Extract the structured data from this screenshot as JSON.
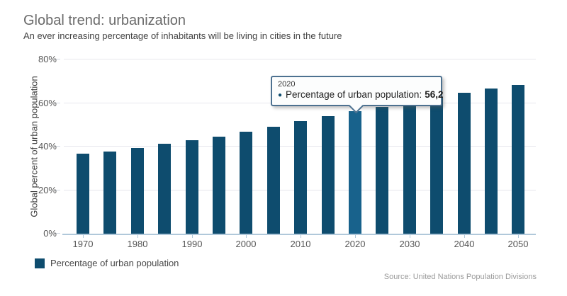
{
  "header": {
    "title": "Global trend: urbanization",
    "subtitle": "An ever increasing percentage of inhabitants will be living in cities in the future"
  },
  "chart_data": {
    "type": "bar",
    "title": "Global trend: urbanization",
    "subtitle": "An ever increasing percentage of inhabitants will be living in cities in the future",
    "xlabel": "",
    "ylabel": "Global percent of urban population",
    "ylim": [
      0,
      80
    ],
    "ytick_labels": [
      "0%",
      "20%",
      "40%",
      "60%",
      "80%"
    ],
    "categories": [
      "1970",
      "1975",
      "1980",
      "1985",
      "1990",
      "1995",
      "2000",
      "2005",
      "2010",
      "2015",
      "2020",
      "2025",
      "2030",
      "2035",
      "2040",
      "2045",
      "2050"
    ],
    "xtick_labels": [
      "1970",
      "1980",
      "1990",
      "2000",
      "2010",
      "2020",
      "2030",
      "2040",
      "2050"
    ],
    "series": [
      {
        "name": "Percentage of urban population",
        "values": [
          36.6,
          37.7,
          39.3,
          41.2,
          43.0,
          44.7,
          46.7,
          49.2,
          51.7,
          53.9,
          56.2,
          58.3,
          60.4,
          62.5,
          64.6,
          66.6,
          68.4
        ]
      }
    ],
    "highlighted_category": "2020",
    "grid": true,
    "legend_position": "bottom-left"
  },
  "tooltip": {
    "year": "2020",
    "bullet": "●",
    "label": "Percentage of urban population:",
    "value": "56,2"
  },
  "legend": {
    "label": "Percentage of urban population"
  },
  "source": {
    "text": "Source: United Nations Population Divisions"
  },
  "colors": {
    "bar": "#0e4c6e",
    "bar_highlight": "#18628c",
    "grid": "#e7e7ed",
    "axis": "#b0c8da",
    "y_tick": "#d4dae2",
    "tooltip_border": "#4d7190"
  }
}
